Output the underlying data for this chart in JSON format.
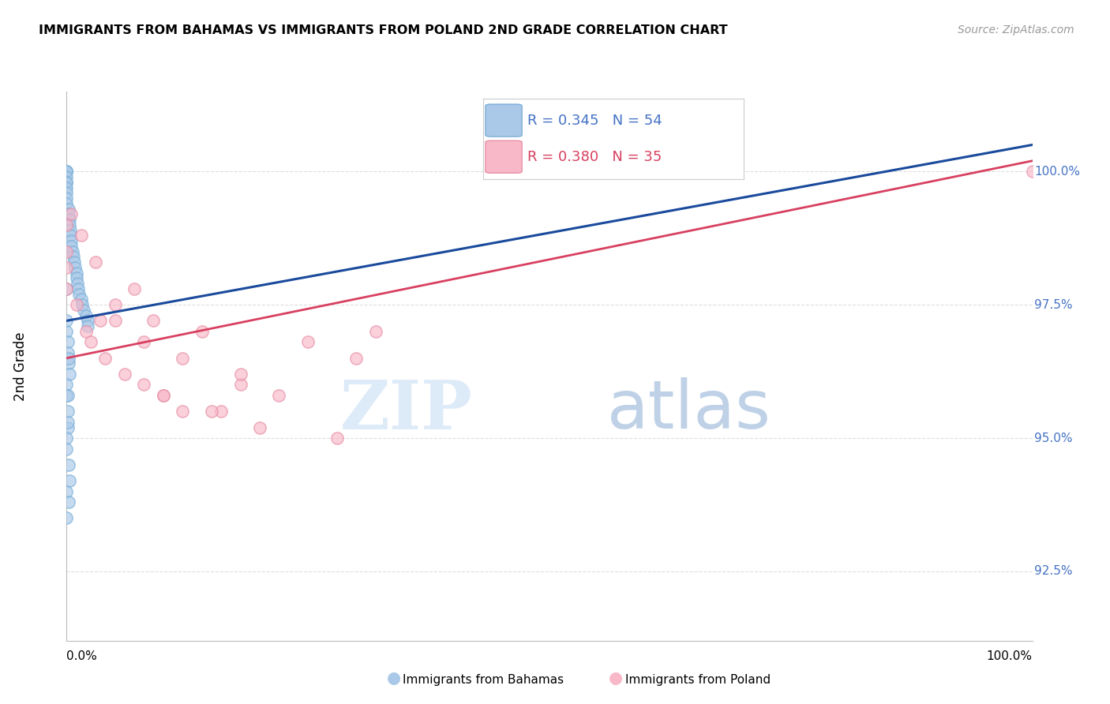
{
  "title": "IMMIGRANTS FROM BAHAMAS VS IMMIGRANTS FROM POLAND 2ND GRADE CORRELATION CHART",
  "source": "Source: ZipAtlas.com",
  "ylabel": "2nd Grade",
  "xlim": [
    0.0,
    100.0
  ],
  "ylim": [
    91.2,
    101.5
  ],
  "y_ticks": [
    92.5,
    95.0,
    97.5,
    100.0
  ],
  "y_tick_labels": [
    "92.5%",
    "95.0%",
    "97.5%",
    "100.0%"
  ],
  "legend_label_blue": "Immigrants from Bahamas",
  "legend_label_pink": "Immigrants from Poland",
  "R_blue": "0.345",
  "N_blue": "54",
  "R_pink": "0.380",
  "N_pink": "35",
  "blue_fill_color": "#aac8e8",
  "blue_edge_color": "#7ab0d8",
  "blue_line_color": "#1a4a9c",
  "pink_fill_color": "#f8b8c8",
  "pink_edge_color": "#e890a8",
  "pink_line_color": "#d84060",
  "blue_scatter_x": [
    0.0,
    0.0,
    0.0,
    0.0,
    0.0,
    0.0,
    0.0,
    0.0,
    0.0,
    0.0,
    0.2,
    0.2,
    0.3,
    0.3,
    0.4,
    0.4,
    0.5,
    0.5,
    0.6,
    0.7,
    0.8,
    0.9,
    1.0,
    1.0,
    1.1,
    1.2,
    1.3,
    1.5,
    1.6,
    1.8,
    2.0,
    2.2,
    2.2,
    0.0,
    0.1,
    0.1,
    0.2,
    0.3,
    0.0,
    0.0,
    0.1,
    0.1,
    0.0,
    0.0,
    0.2,
    0.3,
    0.0,
    0.0,
    0.1,
    0.2,
    0.0,
    0.0,
    0.1,
    0.2
  ],
  "blue_scatter_y": [
    100.0,
    100.0,
    100.0,
    99.9,
    99.8,
    99.8,
    99.7,
    99.6,
    99.5,
    99.4,
    99.3,
    99.2,
    99.1,
    99.0,
    98.9,
    98.8,
    98.7,
    98.6,
    98.5,
    98.4,
    98.3,
    98.2,
    98.1,
    98.0,
    97.9,
    97.8,
    97.7,
    97.6,
    97.5,
    97.4,
    97.3,
    97.2,
    97.1,
    97.0,
    96.8,
    96.6,
    96.4,
    96.2,
    96.0,
    95.8,
    95.5,
    95.2,
    95.0,
    94.8,
    94.5,
    94.2,
    94.0,
    93.5,
    95.8,
    96.5,
    97.2,
    97.8,
    95.3,
    93.8
  ],
  "pink_scatter_x": [
    0.0,
    0.0,
    0.0,
    0.0,
    0.5,
    1.0,
    1.5,
    2.0,
    2.5,
    3.0,
    3.5,
    4.0,
    5.0,
    6.0,
    7.0,
    8.0,
    9.0,
    10.0,
    12.0,
    14.0,
    16.0,
    18.0,
    20.0,
    22.0,
    25.0,
    28.0,
    30.0,
    32.0,
    15.0,
    18.0,
    10.0,
    5.0,
    8.0,
    12.0,
    100.0
  ],
  "pink_scatter_y": [
    99.0,
    98.5,
    98.2,
    97.8,
    99.2,
    97.5,
    98.8,
    97.0,
    96.8,
    98.3,
    97.2,
    96.5,
    97.5,
    96.2,
    97.8,
    96.0,
    97.2,
    95.8,
    96.5,
    97.0,
    95.5,
    96.0,
    95.2,
    95.8,
    96.8,
    95.0,
    96.5,
    97.0,
    95.5,
    96.2,
    95.8,
    97.2,
    96.8,
    95.5,
    100.0
  ],
  "blue_regline_x": [
    0.0,
    100.0
  ],
  "blue_regline_y": [
    97.2,
    100.5
  ],
  "pink_regline_x": [
    0.0,
    100.0
  ],
  "pink_regline_y": [
    96.5,
    100.2
  ],
  "watermark_zip": "ZIP",
  "watermark_atlas": "atlas",
  "bg_color": "#ffffff",
  "grid_color": "#dddddd",
  "tick_color": "#4472c4"
}
